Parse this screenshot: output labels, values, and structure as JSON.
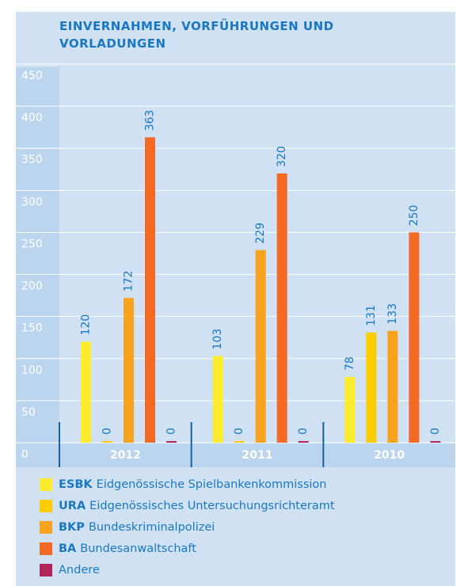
{
  "chart_data": {
    "type": "bar",
    "title": "EINVERNAHMEN, VORFÜHRUNGEN UND VORLADUNGEN",
    "categories": [
      "2012",
      "2011",
      "2010"
    ],
    "series": [
      {
        "name": "ESBK",
        "label": "Eidgenössische Spielbankenkommission",
        "color": "#ffec2e",
        "values": [
          120,
          103,
          78
        ]
      },
      {
        "name": "URA",
        "label": "Eidgenössisches Untersuchungsrichteramt",
        "color": "#ffcc00",
        "values": [
          0,
          0,
          131
        ]
      },
      {
        "name": "BKP",
        "label": "Bundeskriminalpolizei",
        "color": "#f8a31e",
        "values": [
          172,
          229,
          133
        ]
      },
      {
        "name": "BA",
        "label": "Bundesanwaltschaft",
        "color": "#f26a23",
        "values": [
          363,
          320,
          250
        ]
      },
      {
        "name": "Andere",
        "color": "#b2255a",
        "values": [
          0,
          0,
          0
        ]
      }
    ],
    "ylim": [
      0,
      450
    ],
    "yticks": [
      0,
      50,
      100,
      150,
      200,
      250,
      300,
      350,
      400,
      450
    ],
    "grid": true
  }
}
